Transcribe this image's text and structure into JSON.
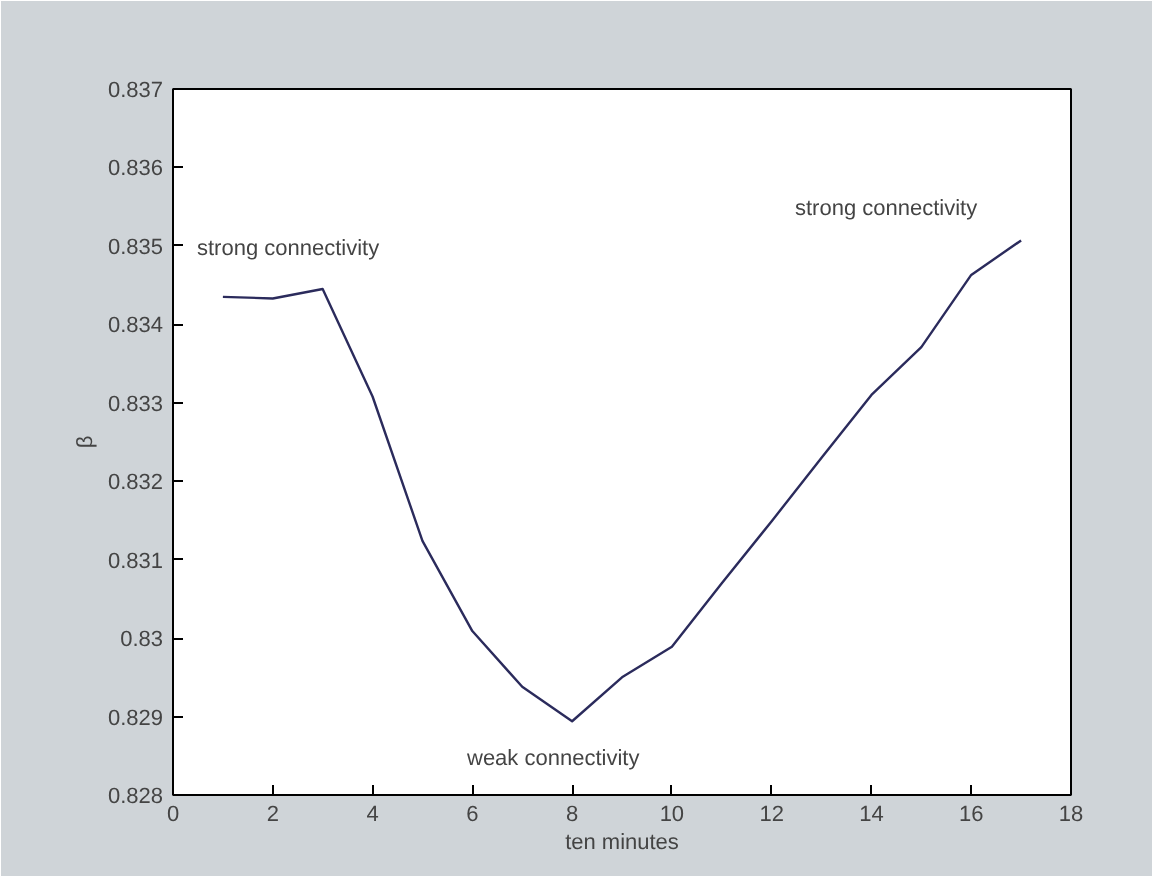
{
  "chart_data": {
    "type": "line",
    "xlabel": "ten minutes",
    "ylabel": "β",
    "x": [
      1,
      2,
      3,
      4,
      5,
      6,
      7,
      8,
      9,
      10,
      11,
      12,
      13,
      14,
      15,
      16,
      17
    ],
    "series": [
      {
        "color": "#2b2b5c",
        "values": [
          0.83435,
          0.83433,
          0.83445,
          0.83308,
          0.83124,
          0.83009,
          0.82938,
          0.82894,
          0.8295,
          0.82989,
          0.8307,
          0.83149,
          0.8323,
          0.8331,
          0.83371,
          0.83463,
          0.83507
        ]
      }
    ],
    "xlim": [
      0,
      18
    ],
    "xticks": [
      0,
      2,
      4,
      6,
      8,
      10,
      12,
      14,
      16,
      18
    ],
    "ylim": [
      0.828,
      0.837
    ],
    "yticks": [
      0.828,
      0.829,
      {
        "value": 0.83,
        "label": "0.83"
      },
      0.831,
      0.832,
      0.833,
      0.834,
      0.835,
      0.836,
      0.837
    ],
    "annotations": [
      "strong connectivity",
      "strong connectivity",
      "weak connectivity"
    ],
    "grid": false,
    "marker": "none",
    "line_style": "solid"
  }
}
